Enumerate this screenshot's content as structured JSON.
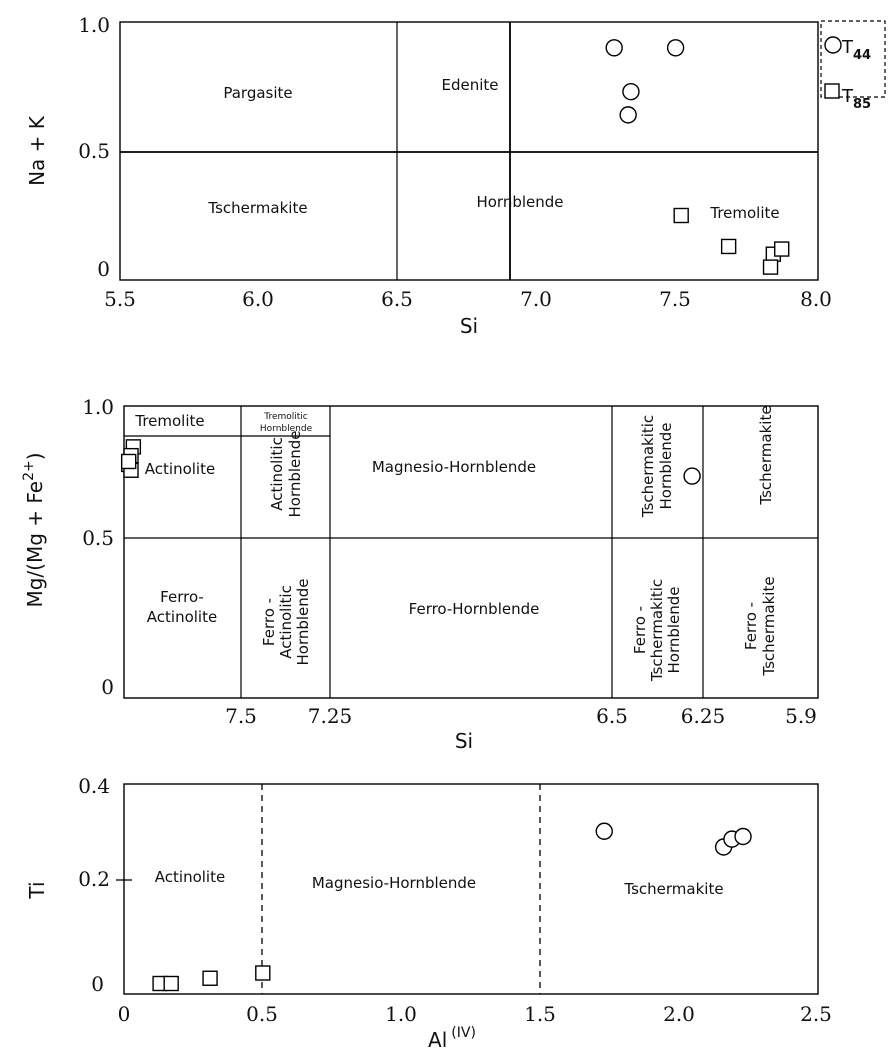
{
  "chart_data": [
    {
      "type": "scatter",
      "panel": "Na+K vs Si",
      "xlabel": "Si",
      "ylabel": "Na + K",
      "xlim": [
        5.5,
        8.0
      ],
      "ylim": [
        0.0,
        1.0
      ],
      "x_ticks": [
        "5.5",
        "6.0",
        "6.5",
        "7.0",
        "7.5",
        "8.0"
      ],
      "y_ticks": [
        "1.0",
        "0.5",
        "0"
      ],
      "fields": [
        "Pargasite",
        "Edenite",
        "Tschermakite",
        "Hornblende",
        "Tremolite"
      ],
      "legend": {
        "placement": "right-of-plot",
        "entries": [
          {
            "marker": "circle",
            "label_main": "T",
            "label_sub": "44"
          },
          {
            "marker": "square",
            "label_main": "T",
            "label_sub": "85"
          }
        ]
      },
      "series": [
        {
          "marker": "circle",
          "points": [
            [
              7.27,
              0.9
            ],
            [
              7.49,
              0.9
            ],
            [
              7.33,
              0.73
            ],
            [
              7.32,
              0.64
            ]
          ]
        },
        {
          "marker": "square",
          "points": [
            [
              7.51,
              0.25
            ],
            [
              7.68,
              0.13
            ],
            [
              7.84,
              0.1
            ],
            [
              7.87,
              0.12
            ],
            [
              7.83,
              0.05
            ]
          ]
        }
      ]
    },
    {
      "type": "scatter",
      "panel": "Mg/(Mg+Fe2+) vs Si",
      "xlabel": "Si",
      "ylabel_main": "Mg/(Mg + Fe",
      "ylabel_sup": "2+",
      "ylabel_close": ")",
      "xlim": [
        8.0,
        5.9
      ],
      "ylim": [
        0.0,
        1.0
      ],
      "x_ticks": [
        "7.5",
        "7.25",
        "6.5",
        "6.25",
        "5.9"
      ],
      "y_ticks": [
        "1.0",
        "0.5",
        "0"
      ],
      "fields": {
        "tremolite": "Tremolite",
        "tremolitic_hornblende": [
          "Tremolitic",
          "Hornblende"
        ],
        "actinolite": "Actinolite",
        "actinolitic_hornblende": [
          "Actinolitic",
          "Hornblende"
        ],
        "magnesio_hornblende": "Magnesio-Hornblende",
        "tschermakitic_hornblende": [
          "Tschermakitic",
          "Hornblende"
        ],
        "tschermakite": "Tschermakite",
        "ferro_actinolite": [
          "Ferro-",
          "Actinolite"
        ],
        "ferro_actinolitic_hornblende": [
          "Ferro -",
          "Actinolitic",
          "Hornblende"
        ],
        "ferro_hornblende": "Ferro-Hornblende",
        "ferro_tschermakitic_hornblende": [
          "Ferro -",
          "Tschermakitic",
          "Hornblende"
        ],
        "ferro_tschermakite": [
          "Ferro -",
          "Tschermakite"
        ]
      },
      "series": [
        {
          "marker": "circle",
          "points": [
            [
              6.28,
              0.76
            ]
          ]
        },
        {
          "marker": "square",
          "points": [
            [
              7.96,
              0.86
            ],
            [
              7.97,
              0.83
            ],
            [
              7.98,
              0.8
            ],
            [
              7.97,
              0.78
            ],
            [
              7.98,
              0.81
            ]
          ]
        }
      ]
    },
    {
      "type": "scatter",
      "panel": "Ti vs Al(IV)",
      "xlabel_main": "Al",
      "xlabel_sup": "(IV)",
      "ylabel": "Ti",
      "xlim": [
        0.0,
        2.5
      ],
      "ylim": [
        0.0,
        0.4
      ],
      "x_ticks": [
        "0",
        "0.5",
        "1.0",
        "1.5",
        "2.0",
        "2.5"
      ],
      "y_ticks": [
        "0.4",
        "0.2",
        "0"
      ],
      "fields": [
        "Actinolite",
        "Magnesio-Hornblende",
        "Tschermakite"
      ],
      "series": [
        {
          "marker": "circle",
          "points": [
            [
              1.73,
              0.31
            ],
            [
              2.16,
              0.28
            ],
            [
              2.19,
              0.295
            ],
            [
              2.23,
              0.3
            ]
          ]
        },
        {
          "marker": "square",
          "points": [
            [
              0.13,
              0.02
            ],
            [
              0.17,
              0.02
            ],
            [
              0.31,
              0.03
            ],
            [
              0.5,
              0.04
            ]
          ]
        }
      ]
    }
  ]
}
